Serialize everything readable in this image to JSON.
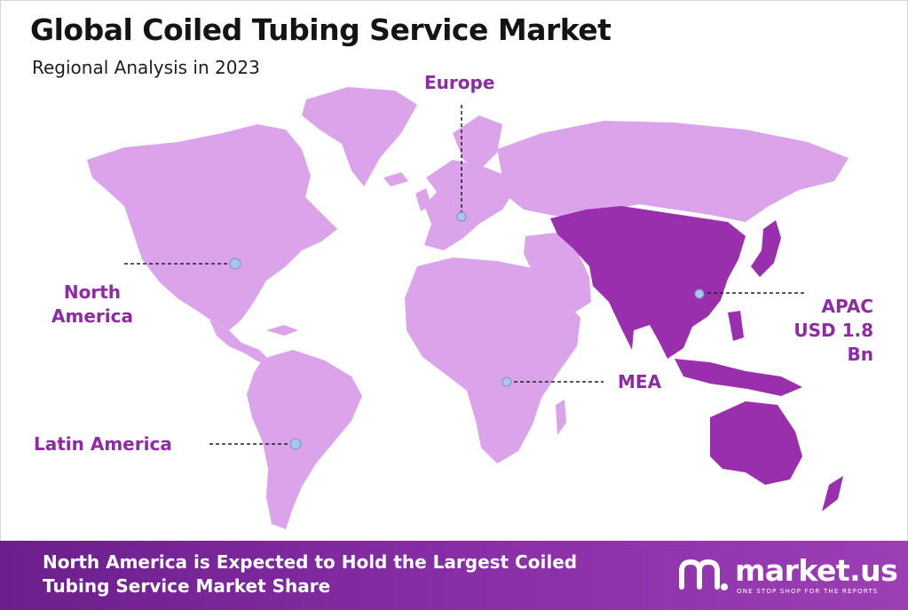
{
  "title": "Global Coiled Tubing Service Market",
  "subtitle": "Regional Analysis in 2023",
  "regions": {
    "europe": "Europe",
    "north_america": "North\nAmerica",
    "latin_america": "Latin America",
    "mea": "MEA",
    "apac": "APAC",
    "apac_value": "USD 1.8 Bn"
  },
  "footer": {
    "text": "North America is Expected to Hold the Largest Coiled Tubing Service Market Share"
  },
  "brand": {
    "name": "market.us",
    "tagline": "ONE STOP SHOP FOR THE REPORTS"
  },
  "colors": {
    "land": "#dba3ea",
    "highlight": "#9a2fae",
    "label": "#8e2aa3",
    "marker": "#a9c6ef",
    "footer": "#7a28a0"
  }
}
